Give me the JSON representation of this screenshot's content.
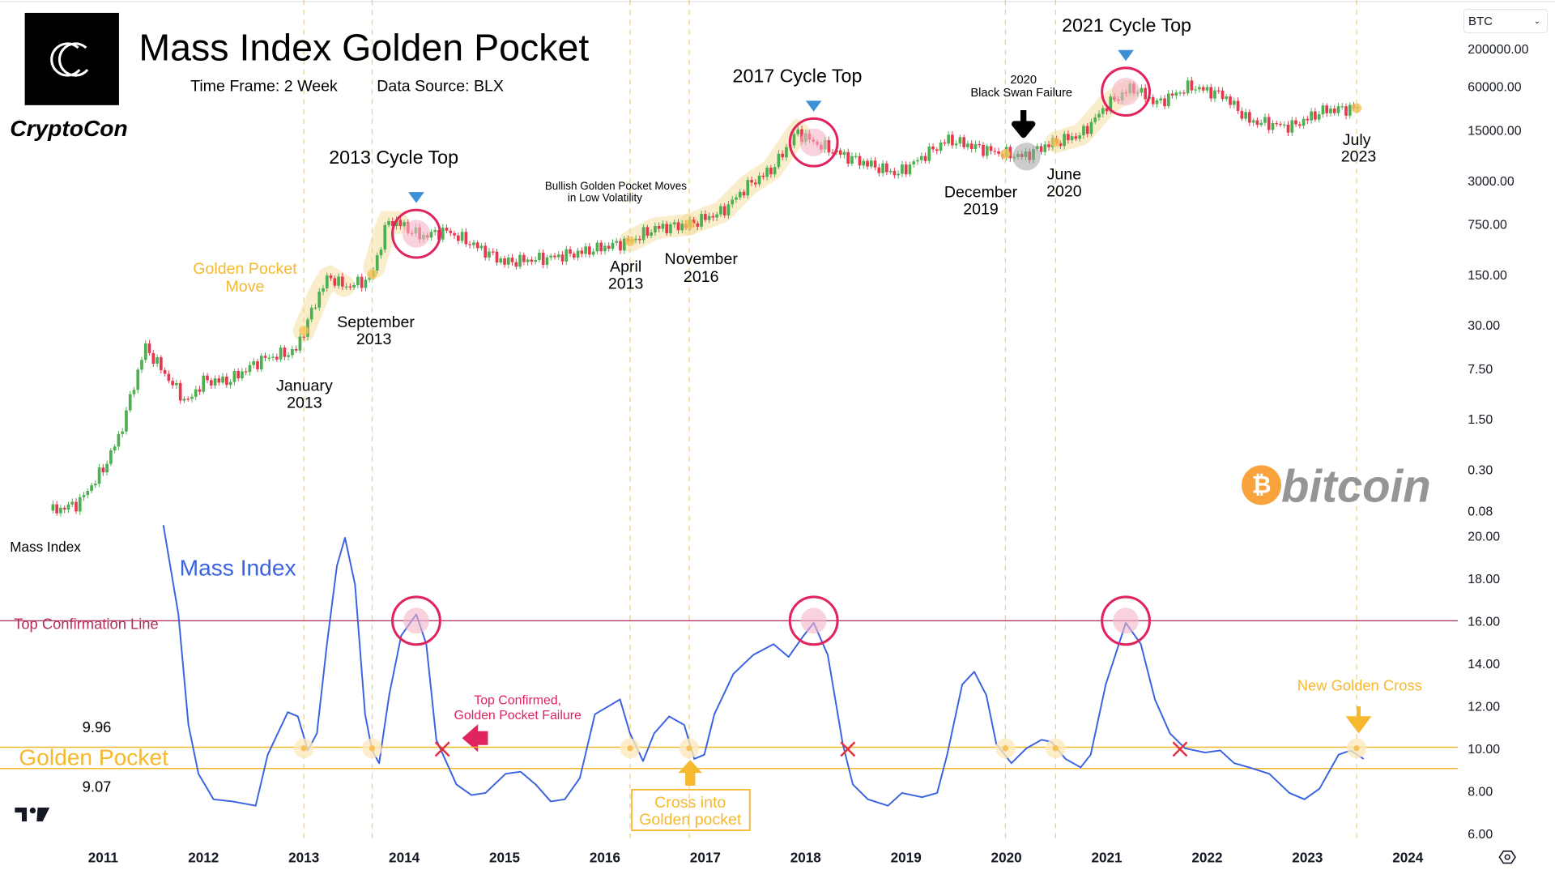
{
  "header": {
    "title": "Mass Index Golden Pocket",
    "time_frame": "Time Frame: 2 Week",
    "data_source": "Data Source: BLX",
    "brand": "CryptoCon",
    "logo_letter": "C"
  },
  "symbol_select": {
    "value": "BTC"
  },
  "watermark": {
    "text": "bitcoin",
    "symbol": "₿"
  },
  "colors": {
    "up": "#4caf50",
    "down": "#e53950",
    "mass_index": "#3a62e0",
    "golden": "#f5b82e",
    "top_line": "#b0305a",
    "circle": "#e0245e"
  },
  "annotations": {
    "cycle_2013": "2013 Cycle Top",
    "cycle_2017": "2017 Cycle Top",
    "cycle_2021": "2021 Cycle Top",
    "black_swan_1": "2020",
    "black_swan_2": "Black Swan Failure",
    "bullish_1": "Bullish Golden Pocket Moves",
    "bullish_2": "in Low Volatility",
    "gp_move_1": "Golden Pocket",
    "gp_move_2": "Move",
    "jan_1": "January",
    "jan_2": "2013",
    "sep_1": "September",
    "sep_2": "2013",
    "apr_1": "April",
    "apr_2": "2013",
    "nov_1": "November",
    "nov_2": "2016",
    "dec_1": "December",
    "dec_2": "2019",
    "jun_1": "June",
    "jun_2": "2020",
    "jul_1": "July",
    "jul_2": "2023",
    "mass_index_pane": "Mass Index",
    "mass_index_title": "Mass Index",
    "top_line": "Top Confirmation Line",
    "golden_pocket": "Golden Pocket",
    "gp_upper": "9.96",
    "gp_lower": "9.07",
    "top_confirmed_1": "Top Confirmed,",
    "top_confirmed_2": "Golden Pocket Failure",
    "cross_1": "Cross into",
    "cross_2": "Golden pocket",
    "new_cross": "New Golden Cross"
  },
  "chart_data": [
    {
      "type": "candlestick",
      "title": "Mass Index Golden Pocket",
      "symbol": "BTC",
      "yscale": "log",
      "ylim": [
        0.08,
        200000
      ],
      "yticks": [
        "200000.00",
        "60000.00",
        "15000.00",
        "3000.00",
        "750.00",
        "150.00",
        "30.00",
        "7.50",
        "1.50",
        "0.30",
        "0.08"
      ],
      "x": [
        "2010-07",
        "2010-10",
        "2011-01",
        "2011-03",
        "2011-06",
        "2011-09",
        "2011-11",
        "2012-01",
        "2012-04",
        "2012-08",
        "2012-12",
        "2013-03",
        "2013-04",
        "2013-06",
        "2013-09",
        "2013-11",
        "2013-12",
        "2014-03",
        "2014-06",
        "2014-09",
        "2015-01",
        "2015-06",
        "2015-10",
        "2016-04",
        "2016-07",
        "2016-11",
        "2017-03",
        "2017-06",
        "2017-09",
        "2017-12",
        "2018-02",
        "2018-06",
        "2018-11",
        "2018-12",
        "2019-06",
        "2019-12",
        "2020-03",
        "2020-06",
        "2020-10",
        "2021-01",
        "2021-04",
        "2021-07",
        "2021-11",
        "2022-03",
        "2022-06",
        "2022-11",
        "2023-03",
        "2023-07"
      ],
      "close": [
        0.08,
        0.1,
        0.3,
        0.9,
        15,
        5,
        2.5,
        5,
        5,
        10,
        13,
        90,
        140,
        100,
        130,
        800,
        800,
        500,
        600,
        400,
        220,
        250,
        300,
        430,
        650,
        730,
        1100,
        2500,
        4300,
        14000,
        10000,
        6300,
        4000,
        3700,
        11000,
        7200,
        6400,
        9400,
        13000,
        33000,
        58000,
        35000,
        60000,
        45000,
        20000,
        16500,
        28000,
        30000
      ]
    },
    {
      "type": "line",
      "name": "Mass Index",
      "ylim": [
        6,
        20
      ],
      "yticks": [
        "20.00",
        "18.00",
        "16.00",
        "14.00",
        "12.00",
        "10.00",
        "8.00",
        "6.00"
      ],
      "xticks": [
        "2011",
        "2012",
        "2013",
        "2014",
        "2015",
        "2016",
        "2017",
        "2018",
        "2019",
        "2020",
        "2021",
        "2022",
        "2023",
        "2024"
      ],
      "x": [
        2011.6,
        2011.75,
        2011.85,
        2011.95,
        2012.1,
        2012.29,
        2012.52,
        2012.64,
        2012.84,
        2012.94,
        2013.04,
        2013.13,
        2013.23,
        2013.33,
        2013.41,
        2013.51,
        2013.61,
        2013.68,
        2013.75,
        2013.85,
        2013.97,
        2014.12,
        2014.22,
        2014.32,
        2014.52,
        2014.67,
        2014.81,
        2015.01,
        2015.16,
        2015.31,
        2015.46,
        2015.6,
        2015.75,
        2015.9,
        2016.15,
        2016.25,
        2016.38,
        2016.49,
        2016.64,
        2016.79,
        2016.89,
        2016.99,
        2017.09,
        2017.28,
        2017.48,
        2017.68,
        2017.83,
        2017.98,
        2018.08,
        2018.22,
        2018.37,
        2018.47,
        2018.62,
        2018.82,
        2018.96,
        2019.16,
        2019.31,
        2019.41,
        2019.56,
        2019.68,
        2019.8,
        2019.9,
        2020.05,
        2020.2,
        2020.35,
        2020.45,
        2020.59,
        2020.74,
        2020.84,
        2020.99,
        2021.19,
        2021.34,
        2021.48,
        2021.63,
        2021.78,
        2021.98,
        2022.13,
        2022.27,
        2022.42,
        2022.62,
        2022.82,
        2022.97,
        2023.12,
        2023.31,
        2023.43,
        2023.56
      ],
      "values": [
        20.5,
        16.3,
        11.1,
        8.8,
        7.6,
        7.5,
        7.3,
        9.7,
        11.7,
        11.5,
        9.9,
        10.7,
        14.9,
        18.6,
        19.9,
        17.7,
        11.6,
        9.9,
        9.3,
        12.5,
        15.3,
        16.3,
        14.9,
        10.4,
        8.3,
        7.8,
        7.9,
        8.8,
        8.9,
        8.3,
        7.5,
        7.6,
        8.6,
        11.6,
        12.3,
        10.7,
        9.4,
        10.7,
        11.5,
        11.1,
        9.5,
        9.7,
        11.6,
        13.5,
        14.4,
        14.9,
        14.3,
        15.3,
        15.9,
        14.4,
        10.2,
        8.3,
        7.6,
        7.3,
        7.9,
        7.7,
        7.9,
        9.7,
        13.0,
        13.6,
        12.5,
        10.2,
        9.3,
        10.0,
        10.4,
        10.3,
        9.5,
        9.1,
        9.7,
        13.0,
        15.9,
        14.9,
        12.3,
        10.7,
        10.0,
        9.8,
        9.9,
        9.3,
        9.1,
        8.8,
        7.9,
        7.6,
        8.1,
        9.7,
        9.9,
        9.5
      ],
      "reference_lines": [
        {
          "label": "Top Confirmation Line",
          "value": 16
        },
        {
          "label": "Golden Pocket",
          "range": [
            9.07,
            9.96
          ]
        }
      ],
      "golden_pocket_crosses": [
        2013.0,
        2013.68,
        2016.25,
        2016.84,
        2019.99,
        2020.49,
        2023.49
      ],
      "failures": [
        2014.38,
        2018.42,
        2021.73
      ],
      "tops": [
        2014.12,
        2018.08,
        2021.19
      ]
    }
  ]
}
